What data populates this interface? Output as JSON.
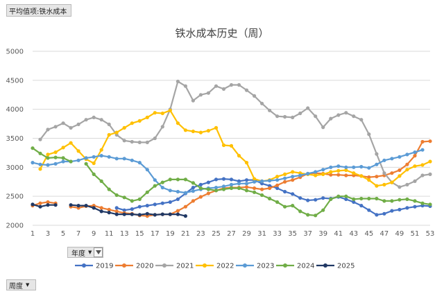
{
  "pivot": {
    "value_field": "平均值项:铁水成本",
    "series_field": "年度",
    "axis_field": "周度"
  },
  "chart_data": {
    "type": "line",
    "title": "铁水成本历史（周）",
    "xlabel": "",
    "ylabel": "",
    "ylim": [
      2000,
      5000
    ],
    "yticks": [
      2000,
      2500,
      3000,
      3500,
      4000,
      4500,
      5000
    ],
    "xlim": [
      1,
      53
    ],
    "xticks": [
      1,
      3,
      5,
      7,
      9,
      11,
      13,
      15,
      17,
      19,
      21,
      23,
      25,
      27,
      29,
      31,
      33,
      35,
      37,
      39,
      41,
      43,
      45,
      47,
      49,
      51,
      53
    ],
    "grid": true,
    "legend": "bottom",
    "series": [
      {
        "name": "2019",
        "color": "#4472c4",
        "x": [
          12,
          13,
          14,
          15,
          16,
          17,
          18,
          19,
          20,
          21,
          22,
          23,
          24,
          25,
          26,
          27,
          28,
          29,
          30,
          31,
          32,
          33,
          34,
          35,
          36,
          37,
          38,
          39,
          40,
          41,
          42,
          43,
          44,
          45,
          46,
          47,
          48,
          49,
          50,
          51,
          52,
          53
        ],
        "values": [
          2300,
          2260,
          2280,
          2320,
          2340,
          2360,
          2380,
          2400,
          2450,
          2550,
          2650,
          2700,
          2740,
          2790,
          2800,
          2790,
          2760,
          2780,
          2780,
          2720,
          2680,
          2640,
          2580,
          2540,
          2470,
          2430,
          2440,
          2470,
          2460,
          2490,
          2450,
          2400,
          2340,
          2260,
          2180,
          2200,
          2250,
          2270,
          2300,
          2320,
          2340,
          2330
        ]
      },
      {
        "name": "2020",
        "color": "#ed7d31",
        "x": [
          1,
          2,
          3,
          4,
          5,
          6,
          7,
          8,
          9,
          10,
          11,
          12,
          13,
          14,
          15,
          16,
          17,
          18,
          19,
          20,
          21,
          22,
          23,
          24,
          25,
          26,
          27,
          28,
          29,
          30,
          31,
          32,
          33,
          34,
          35,
          36,
          37,
          38,
          39,
          40,
          41,
          42,
          43,
          44,
          45,
          46,
          47,
          48,
          49,
          50,
          51,
          52,
          53
        ],
        "values": [
          2340,
          2380,
          2400,
          2380,
          null,
          2320,
          2300,
          2330,
          2340,
          2300,
          2270,
          2240,
          2210,
          2200,
          2170,
          2160,
          2180,
          2190,
          2190,
          2250,
          2320,
          2420,
          2490,
          2550,
          2600,
          2640,
          2650,
          2650,
          2660,
          2640,
          2620,
          2640,
          2690,
          2750,
          2780,
          2830,
          2890,
          2900,
          2890,
          2870,
          2870,
          2860,
          2860,
          2850,
          2830,
          2840,
          2860,
          2900,
          2950,
          3050,
          3200,
          3440,
          3450
        ]
      },
      {
        "name": "2021",
        "color": "#a5a5a5",
        "x": [
          1,
          2,
          3,
          4,
          5,
          6,
          7,
          8,
          9,
          10,
          11,
          12,
          13,
          14,
          15,
          16,
          17,
          18,
          19,
          20,
          21,
          22,
          23,
          24,
          25,
          26,
          27,
          28,
          29,
          30,
          31,
          32,
          33,
          34,
          35,
          36,
          37,
          38,
          39,
          40,
          41,
          42,
          43,
          44,
          45,
          46,
          47,
          48,
          49,
          50,
          51,
          52,
          53
        ],
        "values": [
          null,
          3480,
          3650,
          3700,
          3760,
          3680,
          3740,
          3820,
          3860,
          3820,
          3740,
          3560,
          3460,
          3440,
          3430,
          3430,
          3500,
          3700,
          4000,
          4480,
          4400,
          4150,
          4250,
          4280,
          4400,
          4350,
          4420,
          4420,
          4330,
          4230,
          4100,
          3980,
          3880,
          3870,
          3860,
          3930,
          4020,
          3880,
          3690,
          3840,
          3900,
          3940,
          3880,
          3820,
          3570,
          3230,
          2900,
          2740,
          2660,
          2700,
          2760,
          2860,
          2880
        ]
      },
      {
        "name": "2022",
        "color": "#ffc000",
        "x": [
          1,
          2,
          3,
          4,
          5,
          6,
          7,
          8,
          9,
          10,
          11,
          12,
          13,
          14,
          15,
          16,
          17,
          18,
          19,
          20,
          21,
          22,
          23,
          24,
          25,
          26,
          27,
          28,
          29,
          30,
          31,
          32,
          33,
          34,
          35,
          36,
          37,
          38,
          39,
          40,
          41,
          42,
          43,
          44,
          45,
          46,
          47,
          48,
          49,
          50,
          51,
          52,
          53
        ],
        "values": [
          null,
          2970,
          3220,
          3260,
          3340,
          3420,
          3280,
          3140,
          3070,
          3300,
          3560,
          3600,
          3680,
          3760,
          3800,
          3860,
          3940,
          3930,
          3980,
          3760,
          3640,
          3620,
          3600,
          3630,
          3680,
          3380,
          3370,
          3200,
          3080,
          2800,
          2760,
          2780,
          2840,
          2880,
          2920,
          2900,
          2880,
          2860,
          2880,
          2920,
          2940,
          2950,
          2900,
          2850,
          2780,
          2680,
          2700,
          2740,
          2850,
          2960,
          3020,
          3040,
          3100
        ]
      },
      {
        "name": "2023",
        "color": "#5b9bd5",
        "x": [
          1,
          2,
          3,
          4,
          5,
          6,
          7,
          8,
          9,
          10,
          11,
          12,
          13,
          14,
          15,
          16,
          17,
          18,
          19,
          20,
          21,
          22,
          23,
          24,
          25,
          26,
          27,
          28,
          29,
          30,
          31,
          32,
          33,
          34,
          35,
          36,
          37,
          38,
          39,
          40,
          41,
          42,
          43,
          44,
          45,
          46,
          47,
          48,
          49,
          50,
          51,
          52,
          53
        ],
        "values": [
          3080,
          3050,
          3040,
          3060,
          3100,
          3100,
          3120,
          3160,
          3180,
          3200,
          3180,
          3150,
          3150,
          3120,
          3080,
          2960,
          2780,
          2650,
          2600,
          2580,
          2560,
          2590,
          2620,
          2640,
          2650,
          2670,
          2700,
          2720,
          2720,
          2750,
          2760,
          2770,
          2780,
          2810,
          2840,
          2860,
          2890,
          2920,
          2960,
          3000,
          3020,
          3000,
          3000,
          3010,
          2990,
          3050,
          3120,
          3150,
          3180,
          3220,
          3260,
          3300,
          null
        ]
      },
      {
        "name": "2024",
        "color": "#70ad47",
        "x": [
          1,
          2,
          3,
          4,
          5,
          6,
          7,
          8,
          9,
          10,
          11,
          12,
          13,
          14,
          15,
          16,
          17,
          18,
          19,
          20,
          21,
          22,
          23,
          24,
          25,
          26,
          27,
          28,
          29,
          30,
          31,
          32,
          33,
          34,
          35,
          36,
          37,
          38,
          39,
          40,
          41,
          42,
          43,
          44,
          45,
          46,
          47,
          48,
          49,
          50,
          51,
          52,
          53
        ],
        "values": [
          3330,
          3240,
          3160,
          3170,
          3160,
          3100,
          null,
          3060,
          2880,
          2760,
          2620,
          2520,
          2480,
          2420,
          2450,
          2570,
          2680,
          2740,
          2790,
          2790,
          2790,
          2730,
          2640,
          2620,
          2600,
          2620,
          2640,
          2640,
          2600,
          2570,
          2520,
          2460,
          2400,
          2320,
          2340,
          2240,
          2180,
          2170,
          2260,
          2450,
          2500,
          2500,
          2450,
          2460,
          2460,
          2460,
          2420,
          2420,
          2440,
          2450,
          2420,
          2380,
          2360
        ]
      },
      {
        "name": "2025",
        "color": "#203864",
        "x": [
          1,
          2,
          3,
          4,
          5,
          6,
          7,
          8,
          9,
          10,
          11,
          12,
          13,
          14,
          15,
          16,
          17,
          18,
          19,
          20,
          21
        ],
        "values": [
          2360,
          2320,
          2350,
          2350,
          null,
          2350,
          2340,
          2340,
          2300,
          2240,
          2220,
          2190,
          2190,
          2190,
          2180,
          2200,
          2180,
          2190,
          2190,
          2190,
          2160
        ]
      }
    ]
  }
}
